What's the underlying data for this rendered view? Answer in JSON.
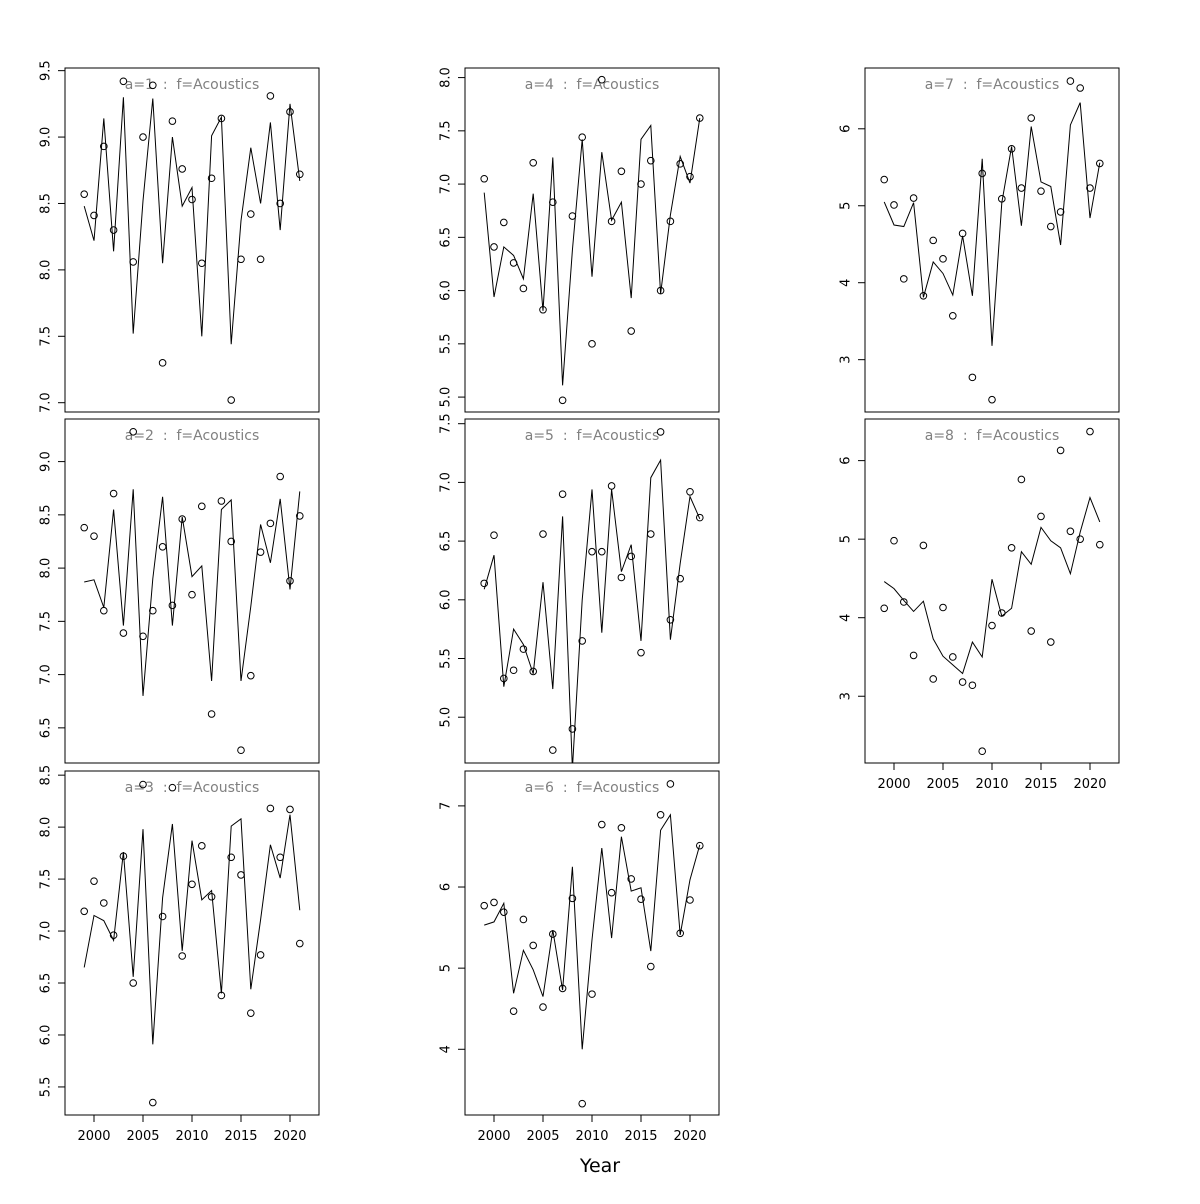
{
  "xlabel": "Year",
  "chart_data": [
    {
      "type": "line",
      "title": "a=1  :  f=Acoustics",
      "x": [
        1999,
        2000,
        2001,
        2002,
        2003,
        2004,
        2005,
        2006,
        2007,
        2008,
        2009,
        2010,
        2011,
        2012,
        2013,
        2014,
        2015,
        2016,
        2017,
        2018,
        2019,
        2020,
        2021
      ],
      "xlim": [
        1997.04,
        2022.96
      ],
      "ylim": [
        6.93,
        9.52
      ],
      "yticks": [
        {
          "value": 7,
          "label": "7.0"
        },
        {
          "value": 7.5,
          "label": "7.5"
        },
        {
          "value": 8,
          "label": "8.0"
        },
        {
          "value": 8.5,
          "label": "8.5"
        },
        {
          "value": 9,
          "label": "9.0"
        },
        {
          "value": 9.5,
          "label": "9.5"
        }
      ],
      "series": [
        {
          "style": "points",
          "color": "#000000",
          "values": [
            8.57,
            8.41,
            8.93,
            8.3,
            9.42,
            8.06,
            9.0,
            9.39,
            7.3,
            9.12,
            8.76,
            8.53,
            8.05,
            8.69,
            9.14,
            7.02,
            8.08,
            8.42,
            8.08,
            9.31,
            8.5,
            9.19,
            8.72
          ]
        },
        {
          "style": "line",
          "color": "#000000",
          "values": [
            8.48,
            8.22,
            9.14,
            8.14,
            9.3,
            7.52,
            8.52,
            9.29,
            8.05,
            9.0,
            8.48,
            8.62,
            7.5,
            9.01,
            9.15,
            7.44,
            8.37,
            8.92,
            8.5,
            9.11,
            8.3,
            9.25,
            8.67
          ]
        }
      ]
    },
    {
      "type": "line",
      "title": "a=2  :  f=Acoustics",
      "x": [
        1999,
        2000,
        2001,
        2002,
        2003,
        2004,
        2005,
        2006,
        2007,
        2008,
        2009,
        2010,
        2011,
        2012,
        2013,
        2014,
        2015,
        2016,
        2017,
        2018,
        2019,
        2020,
        2021
      ],
      "xlim": [
        1997.04,
        2022.96
      ],
      "ylim": [
        6.17,
        9.4
      ],
      "yticks": [
        {
          "value": 6.5,
          "label": "6.5"
        },
        {
          "value": 7,
          "label": "7.0"
        },
        {
          "value": 7.5,
          "label": "7.5"
        },
        {
          "value": 8,
          "label": "8.0"
        },
        {
          "value": 8.5,
          "label": "8.5"
        },
        {
          "value": 9,
          "label": "9.0"
        }
      ],
      "series": [
        {
          "style": "points",
          "color": "#000000",
          "values": [
            8.38,
            8.3,
            7.6,
            8.7,
            7.39,
            9.28,
            7.36,
            7.6,
            8.2,
            7.65,
            8.46,
            7.75,
            8.58,
            6.63,
            8.63,
            8.25,
            6.29,
            6.99,
            8.15,
            8.42,
            8.86,
            7.88,
            8.49
          ]
        },
        {
          "style": "line",
          "color": "#000000",
          "values": [
            7.87,
            7.89,
            7.63,
            8.55,
            7.46,
            8.74,
            6.8,
            7.9,
            8.67,
            7.46,
            8.48,
            7.92,
            8.02,
            6.94,
            8.55,
            8.64,
            6.94,
            7.64,
            8.41,
            8.05,
            8.65,
            7.8,
            8.72
          ]
        }
      ]
    },
    {
      "type": "line",
      "title": "a=3  :  f=Acoustics",
      "x": [
        1999,
        2000,
        2001,
        2002,
        2003,
        2004,
        2005,
        2006,
        2007,
        2008,
        2009,
        2010,
        2011,
        2012,
        2013,
        2014,
        2015,
        2016,
        2017,
        2018,
        2019,
        2020,
        2021
      ],
      "xlim": [
        1997.04,
        2022.96
      ],
      "ylim": [
        5.23,
        8.54
      ],
      "xticks": [
        2000,
        2005,
        2010,
        2015,
        2020
      ],
      "yticks": [
        {
          "value": 5.5,
          "label": "5.5"
        },
        {
          "value": 6,
          "label": "6.0"
        },
        {
          "value": 6.5,
          "label": "6.5"
        },
        {
          "value": 7,
          "label": "7.0"
        },
        {
          "value": 7.5,
          "label": "7.5"
        },
        {
          "value": 8,
          "label": "8.0"
        },
        {
          "value": 8.5,
          "label": "8.5"
        }
      ],
      "series": [
        {
          "style": "points",
          "color": "#000000",
          "values": [
            7.19,
            7.48,
            7.27,
            6.96,
            7.72,
            6.5,
            8.41,
            5.35,
            7.14,
            8.38,
            6.76,
            7.45,
            7.82,
            7.33,
            6.38,
            7.71,
            7.54,
            6.21,
            6.77,
            8.18,
            7.71,
            8.17,
            6.88
          ]
        },
        {
          "style": "line",
          "color": "#000000",
          "values": [
            6.65,
            7.15,
            7.1,
            6.91,
            7.76,
            6.56,
            7.98,
            5.91,
            7.32,
            8.03,
            6.81,
            7.87,
            7.3,
            7.39,
            6.4,
            8.01,
            8.08,
            6.44,
            7.11,
            7.83,
            7.51,
            8.12,
            7.2
          ]
        }
      ]
    },
    {
      "type": "line",
      "title": "a=4  :  f=Acoustics",
      "x": [
        1999,
        2000,
        2001,
        2002,
        2003,
        2004,
        2005,
        2006,
        2007,
        2008,
        2009,
        2010,
        2011,
        2012,
        2013,
        2014,
        2015,
        2016,
        2017,
        2018,
        2019,
        2020,
        2021
      ],
      "xlim": [
        1997.04,
        2022.96
      ],
      "ylim": [
        4.86,
        8.09
      ],
      "yticks": [
        {
          "value": 5,
          "label": "5.0"
        },
        {
          "value": 5.5,
          "label": "5.5"
        },
        {
          "value": 6,
          "label": "6.0"
        },
        {
          "value": 6.5,
          "label": "6.5"
        },
        {
          "value": 7,
          "label": "7.0"
        },
        {
          "value": 7.5,
          "label": "7.5"
        },
        {
          "value": 8,
          "label": "8.0"
        }
      ],
      "series": [
        {
          "style": "points",
          "color": "#000000",
          "values": [
            7.05,
            6.41,
            6.64,
            6.26,
            6.02,
            7.2,
            5.82,
            6.83,
            4.97,
            6.7,
            7.44,
            5.5,
            7.98,
            6.65,
            7.12,
            5.62,
            7.0,
            7.22,
            6.0,
            6.65,
            7.19,
            7.07,
            7.62
          ]
        },
        {
          "style": "line",
          "color": "#000000",
          "values": [
            6.92,
            5.94,
            6.41,
            6.33,
            6.11,
            6.91,
            5.81,
            7.25,
            5.11,
            6.38,
            7.42,
            6.13,
            7.3,
            6.66,
            6.83,
            5.93,
            7.42,
            7.55,
            5.97,
            6.71,
            7.26,
            7.01,
            7.62
          ]
        }
      ]
    },
    {
      "type": "line",
      "title": "a=5  :  f=Acoustics",
      "x": [
        1999,
        2000,
        2001,
        2002,
        2003,
        2004,
        2005,
        2006,
        2007,
        2008,
        2009,
        2010,
        2011,
        2012,
        2013,
        2014,
        2015,
        2016,
        2017,
        2018,
        2019,
        2020,
        2021
      ],
      "xlim": [
        1997.04,
        2022.96
      ],
      "ylim": [
        4.61,
        7.54
      ],
      "yticks": [
        {
          "value": 5,
          "label": "5.0"
        },
        {
          "value": 5.5,
          "label": "5.5"
        },
        {
          "value": 6,
          "label": "6.0"
        },
        {
          "value": 6.5,
          "label": "6.5"
        },
        {
          "value": 7,
          "label": "7.0"
        },
        {
          "value": 7.5,
          "label": "7.5"
        }
      ],
      "series": [
        {
          "style": "points",
          "color": "#000000",
          "values": [
            6.14,
            6.55,
            5.33,
            5.4,
            5.58,
            5.39,
            6.56,
            4.72,
            6.9,
            4.9,
            5.65,
            6.41,
            6.41,
            6.97,
            6.19,
            6.37,
            5.55,
            6.56,
            7.43,
            5.83,
            6.18,
            6.92,
            6.7
          ]
        },
        {
          "style": "line",
          "color": "#000000",
          "values": [
            6.09,
            6.38,
            5.26,
            5.75,
            5.62,
            5.37,
            6.15,
            5.24,
            6.71,
            4.56,
            6.0,
            6.94,
            5.72,
            6.94,
            6.24,
            6.47,
            5.65,
            7.04,
            7.19,
            5.66,
            6.31,
            6.88,
            6.69
          ]
        }
      ]
    },
    {
      "type": "line",
      "title": "a=6  :  f=Acoustics",
      "x": [
        1999,
        2000,
        2001,
        2002,
        2003,
        2004,
        2005,
        2006,
        2007,
        2008,
        2009,
        2010,
        2011,
        2012,
        2013,
        2014,
        2015,
        2016,
        2017,
        2018,
        2019,
        2020,
        2021
      ],
      "xlim": [
        1997.04,
        2022.96
      ],
      "ylim": [
        3.19,
        7.43
      ],
      "xticks": [
        2000,
        2005,
        2010,
        2015,
        2020
      ],
      "yticks": [
        4,
        5,
        6,
        7
      ],
      "series": [
        {
          "style": "points",
          "color": "#000000",
          "values": [
            5.77,
            5.81,
            5.69,
            4.47,
            5.6,
            5.28,
            4.52,
            5.42,
            4.75,
            5.86,
            3.33,
            4.68,
            6.77,
            5.93,
            6.73,
            6.1,
            5.85,
            5.02,
            6.89,
            7.27,
            5.43,
            5.84,
            6.51
          ]
        },
        {
          "style": "line",
          "color": "#000000",
          "values": [
            5.53,
            5.57,
            5.8,
            4.69,
            5.22,
            4.98,
            4.65,
            5.47,
            4.73,
            6.25,
            4.0,
            5.35,
            6.48,
            5.37,
            6.62,
            5.95,
            5.99,
            5.21,
            6.7,
            6.89,
            5.41,
            6.09,
            6.52
          ]
        }
      ]
    },
    {
      "type": "line",
      "title": "a=7  :  f=Acoustics",
      "x": [
        1999,
        2000,
        2001,
        2002,
        2003,
        2004,
        2005,
        2006,
        2007,
        2008,
        2009,
        2010,
        2011,
        2012,
        2013,
        2014,
        2015,
        2016,
        2017,
        2018,
        2019,
        2020,
        2021
      ],
      "xlim": [
        1997.04,
        2022.96
      ],
      "ylim": [
        2.32,
        6.79
      ],
      "yticks": [
        3,
        4,
        5,
        6
      ],
      "series": [
        {
          "style": "points",
          "color": "#000000",
          "values": [
            5.34,
            5.01,
            4.05,
            5.1,
            3.83,
            4.55,
            4.31,
            3.57,
            4.64,
            2.77,
            5.42,
            2.48,
            5.09,
            5.74,
            5.23,
            6.14,
            5.19,
            4.73,
            4.92,
            6.62,
            6.53,
            5.23,
            5.55
          ]
        },
        {
          "style": "line",
          "color": "#000000",
          "values": [
            5.05,
            4.75,
            4.73,
            5.04,
            3.81,
            4.27,
            4.12,
            3.84,
            4.61,
            3.83,
            5.61,
            3.18,
            5.04,
            5.77,
            4.74,
            6.03,
            5.31,
            5.25,
            4.49,
            6.05,
            6.34,
            4.84,
            5.56
          ]
        }
      ]
    },
    {
      "type": "line",
      "title": "a=8  :  f=Acoustics",
      "x": [
        1999,
        2000,
        2001,
        2002,
        2003,
        2004,
        2005,
        2006,
        2007,
        2008,
        2009,
        2010,
        2011,
        2012,
        2013,
        2014,
        2015,
        2016,
        2017,
        2018,
        2019,
        2020,
        2021
      ],
      "xlim": [
        1997.04,
        2022.96
      ],
      "ylim": [
        2.15,
        6.53
      ],
      "xticks": [
        2000,
        2005,
        2010,
        2015,
        2020
      ],
      "yticks": [
        3,
        4,
        5,
        6
      ],
      "series": [
        {
          "style": "points",
          "color": "#000000",
          "values": [
            4.12,
            4.98,
            4.2,
            3.52,
            4.92,
            3.22,
            4.13,
            3.5,
            3.18,
            3.14,
            2.3,
            3.9,
            4.06,
            4.89,
            5.76,
            3.83,
            5.29,
            3.69,
            6.13,
            5.1,
            5.0,
            6.37,
            4.93
          ]
        },
        {
          "style": "line",
          "color": "#000000",
          "values": [
            4.46,
            4.37,
            4.22,
            4.08,
            4.21,
            3.73,
            3.51,
            3.4,
            3.29,
            3.69,
            3.5,
            4.49,
            4.02,
            4.12,
            4.84,
            4.68,
            5.15,
            4.98,
            4.89,
            4.56,
            5.09,
            5.53,
            5.22
          ]
        }
      ]
    }
  ]
}
